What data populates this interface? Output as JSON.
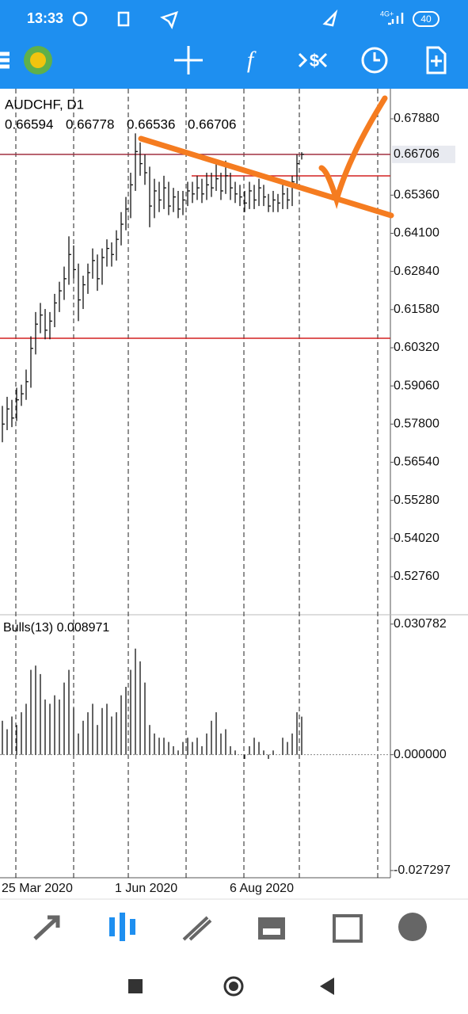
{
  "status_bar": {
    "time": "13:33",
    "network": "4G+",
    "battery": "40"
  },
  "toolbar": {
    "function_icon": "f"
  },
  "chart": {
    "symbol": "AUDCHF, D1",
    "ohlc": [
      "0.66594",
      "0.66778",
      "0.66536",
      "0.66706"
    ],
    "ylim": [
      0.5153,
      0.68874
    ],
    "yticks": [
      {
        "value": 0.6788,
        "label": "0.67880"
      },
      {
        "value": 0.6536,
        "label": "0.65360"
      },
      {
        "value": 0.641,
        "label": "0.64100"
      },
      {
        "value": 0.6284,
        "label": "0.62840"
      },
      {
        "value": 0.6158,
        "label": "0.61580"
      },
      {
        "value": 0.6032,
        "label": "0.60320"
      },
      {
        "value": 0.5906,
        "label": "0.59060"
      },
      {
        "value": 0.578,
        "label": "0.57800"
      },
      {
        "value": 0.5654,
        "label": "0.56540"
      },
      {
        "value": 0.5528,
        "label": "0.55280"
      },
      {
        "value": 0.5402,
        "label": "0.54020"
      },
      {
        "value": 0.5276,
        "label": "0.52760"
      }
    ],
    "current_price": {
      "value": 0.66706,
      "label": "0.66706"
    },
    "levels": [
      0.60634,
      0.65997
    ],
    "close": [
      0.578,
      0.583,
      0.58,
      0.586,
      0.588,
      0.592,
      0.603,
      0.611,
      0.614,
      0.609,
      0.612,
      0.618,
      0.622,
      0.626,
      0.634,
      0.629,
      0.619,
      0.624,
      0.628,
      0.632,
      0.626,
      0.633,
      0.636,
      0.634,
      0.639,
      0.644,
      0.649,
      0.657,
      0.668,
      0.664,
      0.661,
      0.65,
      0.655,
      0.652,
      0.656,
      0.65,
      0.653,
      0.649,
      0.652,
      0.655,
      0.654,
      0.656,
      0.654,
      0.657,
      0.656,
      0.659,
      0.655,
      0.66,
      0.656,
      0.654,
      0.653,
      0.651,
      0.655,
      0.652,
      0.656,
      0.653,
      0.65,
      0.652,
      0.651,
      0.654,
      0.652,
      0.658,
      0.664,
      0.66706
    ],
    "high": [
      0.584,
      0.587,
      0.586,
      0.59,
      0.591,
      0.596,
      0.607,
      0.615,
      0.618,
      0.616,
      0.615,
      0.621,
      0.625,
      0.63,
      0.64,
      0.637,
      0.631,
      0.627,
      0.631,
      0.636,
      0.634,
      0.636,
      0.639,
      0.638,
      0.642,
      0.648,
      0.653,
      0.661,
      0.674,
      0.671,
      0.667,
      0.663,
      0.659,
      0.658,
      0.66,
      0.658,
      0.656,
      0.655,
      0.655,
      0.658,
      0.658,
      0.66,
      0.659,
      0.661,
      0.661,
      0.664,
      0.661,
      0.665,
      0.661,
      0.658,
      0.657,
      0.655,
      0.658,
      0.657,
      0.659,
      0.657,
      0.654,
      0.655,
      0.654,
      0.657,
      0.656,
      0.66,
      0.667,
      0.66778
    ],
    "low": [
      0.572,
      0.576,
      0.577,
      0.579,
      0.584,
      0.586,
      0.59,
      0.601,
      0.608,
      0.606,
      0.606,
      0.61,
      0.615,
      0.619,
      0.624,
      0.626,
      0.612,
      0.616,
      0.621,
      0.626,
      0.622,
      0.624,
      0.63,
      0.63,
      0.632,
      0.637,
      0.642,
      0.646,
      0.655,
      0.66,
      0.657,
      0.643,
      0.646,
      0.648,
      0.649,
      0.647,
      0.648,
      0.646,
      0.647,
      0.65,
      0.651,
      0.652,
      0.651,
      0.652,
      0.653,
      0.655,
      0.652,
      0.654,
      0.652,
      0.651,
      0.65,
      0.648,
      0.649,
      0.649,
      0.65,
      0.65,
      0.648,
      0.648,
      0.648,
      0.649,
      0.649,
      0.65,
      0.656,
      0.66536
    ],
    "indicator": {
      "label": "Bulls(13) 0.008971",
      "ylim": [
        -0.029,
        0.0328
      ],
      "yticks": [
        0.030782,
        {
          "value": 0,
          "label": "0.000000"
        },
        -0.027297
      ],
      "values": [
        0.008,
        0.006,
        0.009,
        0.007,
        0.01,
        0.012,
        0.02,
        0.021,
        0.019,
        0.013,
        0.012,
        0.014,
        0.013,
        0.017,
        0.02,
        0.011,
        0.005,
        0.008,
        0.01,
        0.012,
        0.007,
        0.011,
        0.012,
        0.009,
        0.01,
        0.014,
        0.016,
        0.02,
        0.025,
        0.022,
        0.017,
        0.007,
        0.005,
        0.004,
        0.004,
        0.003,
        0.002,
        0.001,
        0.003,
        0.004,
        0.003,
        0.004,
        0.002,
        0.005,
        0.008,
        0.01,
        0.005,
        0.006,
        0.002,
        0.001,
        0,
        -0.001,
        0.002,
        0.004,
        0.003,
        0.001,
        -0.001,
        0.001,
        0,
        0.004,
        0.003,
        0.005,
        0.01,
        0.008971
      ]
    },
    "dates": [
      "25 Mar 2020",
      "1 Jun 2020",
      "6 Aug 2020"
    ]
  }
}
